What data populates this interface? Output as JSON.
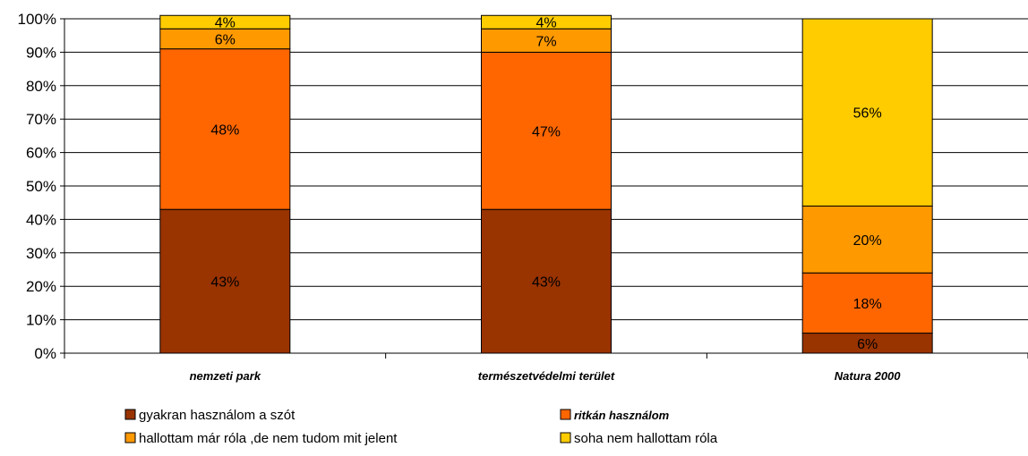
{
  "chart_data": {
    "type": "bar",
    "stacked": "percent",
    "title": "",
    "xlabel": "",
    "ylabel": "",
    "ylim": [
      0,
      100
    ],
    "y_ticks": [
      "0%",
      "10%",
      "20%",
      "30%",
      "40%",
      "50%",
      "60%",
      "70%",
      "80%",
      "90%",
      "100%"
    ],
    "grid": true,
    "legend_position": "bottom",
    "categories": [
      "nemzeti park",
      "természetvédelmi terület",
      "Natura 2000"
    ],
    "series": [
      {
        "name": "gyakran használom a szót",
        "color": "#993300",
        "values": [
          43,
          43,
          6
        ],
        "labels": [
          "43%",
          "43%",
          "6%"
        ]
      },
      {
        "name": "ritkán használom",
        "color": "#ff6600",
        "values": [
          48,
          47,
          18
        ],
        "labels": [
          "48%",
          "47%",
          "18%"
        ]
      },
      {
        "name": "hallottam már róla ,de  nem tudom mit jelent",
        "color": "#ff9900",
        "values": [
          6,
          7,
          20
        ],
        "labels": [
          "6%",
          "7%",
          "20%"
        ]
      },
      {
        "name": "soha nem hallottam róla",
        "color": "#ffcc00",
        "values": [
          4,
          4,
          56
        ],
        "labels": [
          "4%",
          "4%",
          "56%"
        ]
      }
    ]
  }
}
